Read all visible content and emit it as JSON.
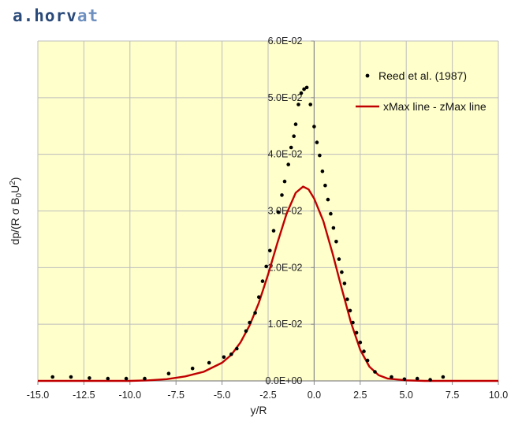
{
  "brand": {
    "part1": "a.horv",
    "part2": "at"
  },
  "chart_data": {
    "type": "scatter",
    "title": "",
    "xlabel": "y/R",
    "ylabel_parts": [
      "dp/(R σ B",
      "0",
      "U",
      "2",
      ")"
    ],
    "xlim": [
      -15,
      10
    ],
    "ylim": [
      0,
      0.06
    ],
    "x_ticks": [
      -15,
      -12.5,
      -10,
      -7.5,
      -5,
      -2.5,
      0,
      2.5,
      5,
      7.5,
      10
    ],
    "x_tick_labels": [
      "-15.0",
      "-12.5",
      "-10.0",
      "-7.5",
      "-5.0",
      "-2.5",
      "0.0",
      "2.5",
      "5.0",
      "7.5",
      "10.0"
    ],
    "y_ticks": [
      0,
      0.01,
      0.02,
      0.03,
      0.04,
      0.05,
      0.06
    ],
    "y_tick_labels": [
      "0.0E+00",
      "1.0E-02",
      "2.0E-02",
      "3.0E-02",
      "4.0E-02",
      "5.0E-02",
      "6.0E-02"
    ],
    "grid": true,
    "legend_position": "top-right",
    "colors": {
      "plot_bg": "#ffffcc",
      "grid": "#bdbdbd",
      "line": "#c00000",
      "points": "#000000"
    },
    "series": [
      {
        "name": "Reed et al. (1987)",
        "kind": "scatter",
        "points": [
          [
            -14.2,
            0.0007
          ],
          [
            -13.2,
            0.0007
          ],
          [
            -12.2,
            0.0005
          ],
          [
            -11.2,
            0.0004
          ],
          [
            -10.2,
            0.0004
          ],
          [
            -9.2,
            0.0004
          ],
          [
            -7.9,
            0.0013
          ],
          [
            -6.6,
            0.0022
          ],
          [
            -5.7,
            0.0032
          ],
          [
            -4.9,
            0.0042
          ],
          [
            -4.5,
            0.0047
          ],
          [
            -4.2,
            0.0057
          ],
          [
            -3.7,
            0.0088
          ],
          [
            -3.5,
            0.0103
          ],
          [
            -3.2,
            0.012
          ],
          [
            -3.0,
            0.0148
          ],
          [
            -2.8,
            0.0176
          ],
          [
            -2.6,
            0.0202
          ],
          [
            -2.4,
            0.023
          ],
          [
            -2.2,
            0.0265
          ],
          [
            -1.95,
            0.0298
          ],
          [
            -1.75,
            0.0328
          ],
          [
            -1.6,
            0.0352
          ],
          [
            -1.4,
            0.0382
          ],
          [
            -1.25,
            0.0412
          ],
          [
            -1.1,
            0.0432
          ],
          [
            -1.0,
            0.0453
          ],
          [
            -0.85,
            0.0488
          ],
          [
            -0.7,
            0.0508
          ],
          [
            -0.55,
            0.0515
          ],
          [
            -0.4,
            0.0518
          ],
          [
            -0.2,
            0.0488
          ],
          [
            0.0,
            0.0449
          ],
          [
            0.15,
            0.0421
          ],
          [
            0.3,
            0.0398
          ],
          [
            0.45,
            0.037
          ],
          [
            0.6,
            0.0345
          ],
          [
            0.75,
            0.032
          ],
          [
            0.9,
            0.0295
          ],
          [
            1.05,
            0.027
          ],
          [
            1.2,
            0.0246
          ],
          [
            1.35,
            0.0215
          ],
          [
            1.5,
            0.0192
          ],
          [
            1.65,
            0.0172
          ],
          [
            1.8,
            0.0144
          ],
          [
            1.95,
            0.0124
          ],
          [
            2.1,
            0.0103
          ],
          [
            2.3,
            0.0085
          ],
          [
            2.5,
            0.0068
          ],
          [
            2.7,
            0.0052
          ],
          [
            2.9,
            0.0036
          ],
          [
            3.3,
            0.0016
          ],
          [
            4.2,
            0.0007
          ],
          [
            4.9,
            0.0003
          ],
          [
            5.6,
            0.0004
          ],
          [
            6.3,
            0.0002
          ],
          [
            7.0,
            0.0007
          ]
        ]
      },
      {
        "name": "xMax line - zMax line",
        "kind": "line",
        "points": [
          [
            -15,
            0
          ],
          [
            -10,
            0
          ],
          [
            -9,
            0.0001
          ],
          [
            -8,
            0.0003
          ],
          [
            -7,
            0.0008
          ],
          [
            -6,
            0.0016
          ],
          [
            -5,
            0.0032
          ],
          [
            -4.5,
            0.0046
          ],
          [
            -4,
            0.0068
          ],
          [
            -3.5,
            0.0098
          ],
          [
            -3,
            0.0138
          ],
          [
            -2.5,
            0.0188
          ],
          [
            -2,
            0.0243
          ],
          [
            -1.5,
            0.0295
          ],
          [
            -1,
            0.0332
          ],
          [
            -0.6,
            0.0343
          ],
          [
            -0.3,
            0.0338
          ],
          [
            0,
            0.0322
          ],
          [
            0.5,
            0.0282
          ],
          [
            1,
            0.0225
          ],
          [
            1.5,
            0.0163
          ],
          [
            2,
            0.0103
          ],
          [
            2.5,
            0.0055
          ],
          [
            3,
            0.0025
          ],
          [
            3.5,
            0.001
          ],
          [
            4,
            0.0004
          ],
          [
            5,
            0.0001
          ],
          [
            6,
            0
          ],
          [
            10,
            0
          ]
        ]
      }
    ]
  }
}
